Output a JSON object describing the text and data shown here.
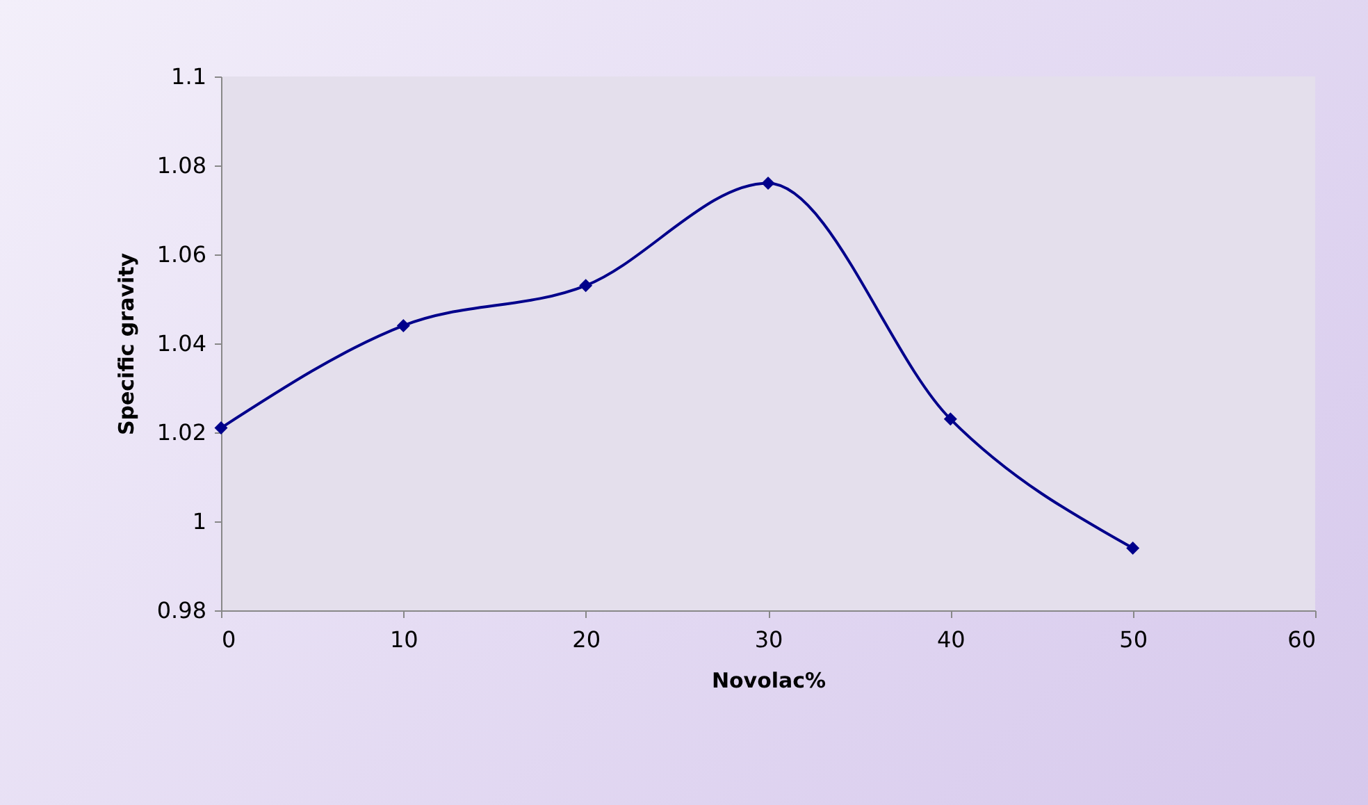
{
  "chart_data": {
    "type": "line",
    "xlabel": "Novolac%",
    "ylabel": "Specific gravity",
    "x": [
      0,
      10,
      20,
      30,
      40,
      50
    ],
    "series": [
      {
        "color": "#00008b",
        "values": [
          1.021,
          1.044,
          1.053,
          1.076,
          1.023,
          0.994
        ]
      }
    ],
    "xlim": [
      0,
      60
    ],
    "xticks": [
      0,
      10,
      20,
      30,
      40,
      50,
      60
    ],
    "ylim": [
      0.98,
      1.1
    ],
    "yticks": [
      0.98,
      1,
      1.02,
      1.04,
      1.06,
      1.08,
      1.1
    ],
    "grid": false,
    "legend": false,
    "marker": "diamond",
    "line_style": "solid"
  }
}
